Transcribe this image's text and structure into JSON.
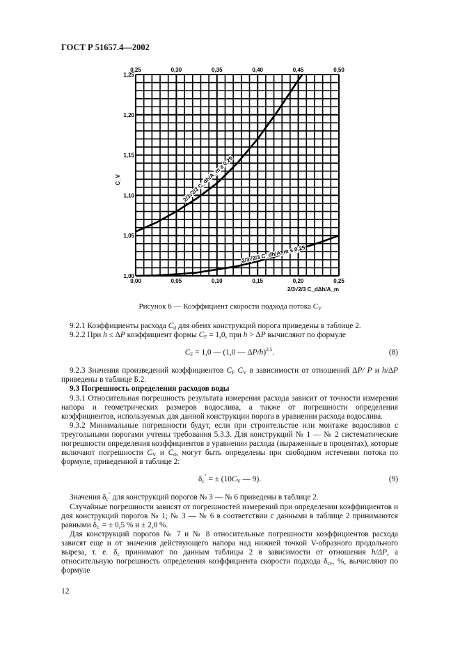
{
  "header": "ГОСТ Р 51657.4—2002",
  "page_number": "12",
  "chart_data": {
    "type": "line",
    "ylabel": "C_V",
    "xlabel": "2/3√2/3 C_dΔh/A_m",
    "x_bottom_ticks": [
      "0,00",
      "0,05",
      "0,10",
      "0,15",
      "0,20",
      "0,25"
    ],
    "x_top_ticks": [
      "0,25",
      "0,30",
      "0,35",
      "0,40",
      "0,45",
      "0,50"
    ],
    "y_ticks": [
      "1,00",
      "1,05",
      "1,10",
      "1,15",
      "1,20",
      "1,25"
    ],
    "xlim_bottom": [
      0,
      0.25
    ],
    "xlim_top": [
      0.25,
      0.5
    ],
    "ylim": [
      1.0,
      1.25
    ],
    "grid": true,
    "grid_step": {
      "x": 0.01,
      "y": 0.01
    },
    "series": [
      {
        "name": "2/3√2/3 C_dh/A_m ≥ 0,25",
        "axis": "top",
        "x": [
          0.25,
          0.275,
          0.3,
          0.325,
          0.35,
          0.375,
          0.4,
          0.425,
          0.45,
          0.455
        ],
        "y": [
          1.055,
          1.066,
          1.08,
          1.096,
          1.115,
          1.14,
          1.17,
          1.205,
          1.243,
          1.25
        ]
      },
      {
        "name": "2/3√2/3 C_dh/A_m ≤ 0,25",
        "axis": "bottom",
        "x": [
          0,
          0.025,
          0.05,
          0.075,
          0.1,
          0.125,
          0.15,
          0.175,
          0.2,
          0.225,
          0.25
        ],
        "y": [
          1.0,
          1.0005,
          1.002,
          1.004,
          1.008,
          1.012,
          1.018,
          1.025,
          1.033,
          1.041,
          1.05
        ]
      }
    ]
  },
  "caption": "Рисунок 6 — Коэффициент скорости подхода потока C_V",
  "content": [
    {
      "k": "p",
      "s": [
        [
          "9.2.1 Коэффициенты расхода "
        ],
        [
          "C",
          "i"
        ],
        [
          "d",
          "sub"
        ],
        [
          " для обеих конструкций порога приведены в таблице 2."
        ]
      ]
    },
    {
      "k": "p",
      "s": [
        [
          "9.2.2 При "
        ],
        [
          "h",
          "i"
        ],
        [
          " ≤ Δ"
        ],
        [
          "P",
          "i"
        ],
        [
          "  коэффициент формы "
        ],
        [
          "C",
          "i"
        ],
        [
          "F",
          "sub"
        ],
        [
          " = 1,0, при "
        ],
        [
          "h",
          "i"
        ],
        [
          " > Δ"
        ],
        [
          "P",
          "i"
        ],
        [
          "  вычисляют по формуле"
        ]
      ]
    },
    {
      "k": "f",
      "num": "(8)",
      "s": [
        [
          "C",
          "i"
        ],
        [
          "F",
          "sub"
        ],
        [
          " = 1,0 — (1,0  — Δ"
        ],
        [
          "P/h",
          "i"
        ],
        [
          ")"
        ],
        [
          "2,5",
          "sup"
        ],
        [
          "."
        ]
      ]
    },
    {
      "k": "p",
      "s": [
        [
          "9.2.3 Значения произведений коэффициентов "
        ],
        [
          "C",
          "i"
        ],
        [
          "F",
          "sub"
        ],
        [
          " "
        ],
        [
          "C",
          "i"
        ],
        [
          "V",
          "sub"
        ],
        [
          " в зависимости от отношений  Δ"
        ],
        [
          "P/ P",
          "i"
        ],
        [
          "  и "
        ],
        [
          "h",
          "i"
        ],
        [
          "/Δ"
        ],
        [
          "P",
          "i"
        ],
        [
          "  приведены в таблице Б.2."
        ]
      ]
    },
    {
      "k": "h",
      "s": [
        [
          "9.3 Погрешность определения расходов воды"
        ]
      ]
    },
    {
      "k": "p",
      "s": [
        [
          "9.3.1 Относительная погрешность результата измерения расхода зависит от точности измерения напора и геометрических размеров водослива, а также от погрешности определения коэффициентов, используемых для данной конструкции порога в уравнении расхода водослива."
        ]
      ]
    },
    {
      "k": "p",
      "s": [
        [
          "9.3.2 Минимальные погрешности будут, если при строительстве или монтаже водосливов с треугольными порогами учтены требования 5.3.3. Для конструкций № 1 — № 2 систематические погрешности определения коэффициентов в уравнении расхода (выраженные в процентах), которые включают погрешности "
        ],
        [
          "C",
          "i"
        ],
        [
          "V",
          "sub"
        ],
        [
          " и "
        ],
        [
          "C",
          "i"
        ],
        [
          "d",
          "sub"
        ],
        [
          ", могут быть определены при свободном истечении потока по формуле, приведенной в таблице 2:"
        ]
      ]
    },
    {
      "k": "f",
      "num": "(9)",
      "s": [
        [
          "δ"
        ],
        [
          "c",
          "sub"
        ],
        [
          "″",
          "sup"
        ],
        [
          " = ± (10"
        ],
        [
          "C",
          "i"
        ],
        [
          "V",
          "sub"
        ],
        [
          " — 9)."
        ]
      ]
    },
    {
      "k": "p",
      "s": [
        [
          "Значения δ"
        ],
        [
          "c",
          "sub"
        ],
        [
          "″",
          "sup"
        ],
        [
          " для конструкций порогов № 3 — № 6 приведены в таблице 2."
        ]
      ]
    },
    {
      "k": "p",
      "s": [
        [
          "Случайные погрешности зависят от погрешностей измерений при определении коэффициентов и для конструкций порогов № 1; № 3 — № 6 в соответствии с данными в таблице 2 принимаются равными δ"
        ],
        [
          "c",
          "sub"
        ],
        [
          "′",
          "sup"
        ],
        [
          " = ± 0,5 % и ± 2,0 %."
        ]
      ]
    },
    {
      "k": "p",
      "s": [
        [
          "Для конструкций порогов № 7 и № 8 относительные погрешности коэффициентов расхода зависят еще и от значения действующего напора над нижней точкой V-образного продольного выреза, т. е. δ"
        ],
        [
          "c",
          "sub"
        ],
        [
          " принимают по данным таблицы 2 в зависимости от отношения "
        ],
        [
          "h/ΔP",
          "i"
        ],
        [
          ", а относительную погрешность определения коэффициента скорости подхода δ"
        ],
        [
          "cv",
          "sub"
        ],
        [
          ", %, вычисляют по формуле"
        ]
      ]
    }
  ]
}
